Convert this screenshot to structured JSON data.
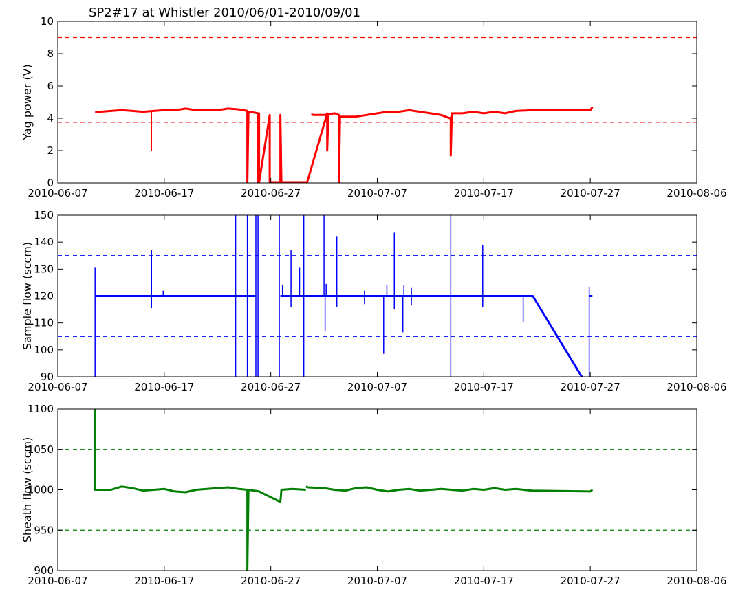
{
  "title": "SP2#17 at Whistler 2010/06/01-2010/09/01",
  "chart_data": [
    {
      "type": "line",
      "ylabel": "Yag power (V)",
      "color": "#ff0000",
      "ylim": [
        0,
        10
      ],
      "yticks": [
        0,
        2,
        4,
        6,
        8,
        10
      ],
      "xlim": [
        "2010-06-07",
        "2010-08-06"
      ],
      "xticks": [
        "2010-06-07",
        "2010-06-17",
        "2010-06-27",
        "2010-07-07",
        "2010-07-17",
        "2010-07-27",
        "2010-08-06"
      ],
      "thresholds": [
        9.0,
        3.75
      ],
      "grid": false,
      "series": [
        {
          "segments": [
            [
              [
                "2010-06-10.5",
                4.4
              ],
              [
                "2010-06-11",
                4.4
              ],
              [
                "2010-06-12",
                4.45
              ],
              [
                "2010-06-13",
                4.5
              ],
              [
                "2010-06-14",
                4.45
              ],
              [
                "2010-06-15",
                4.4
              ],
              [
                "2010-06-16",
                4.45
              ],
              [
                "2010-06-17",
                4.5
              ],
              [
                "2010-06-18",
                4.5
              ],
              [
                "2010-06-19",
                4.6
              ],
              [
                "2010-06-20",
                4.5
              ],
              [
                "2010-06-21",
                4.5
              ],
              [
                "2010-06-22",
                4.5
              ],
              [
                "2010-06-23",
                4.6
              ],
              [
                "2010-06-24",
                4.55
              ],
              [
                "2010-06-24.8",
                4.45
              ],
              [
                "2010-06-24.8",
                0.0
              ],
              [
                "2010-06-24.9",
                4.4
              ],
              [
                "2010-06-25",
                4.4
              ],
              [
                "2010-06-25.8",
                4.3
              ],
              [
                "2010-06-25.8",
                0.0
              ],
              [
                "2010-06-25.9",
                4.3
              ],
              [
                "2010-06-25.9",
                0.0
              ],
              [
                "2010-06-26.9",
                4.2
              ],
              [
                "2010-06-26.9",
                0.0
              ],
              [
                "2010-06-27.9",
                0.0
              ],
              [
                "2010-06-27.9",
                4.2
              ],
              [
                "2010-06-28",
                0.0
              ],
              [
                "2010-06-30.4",
                0.0
              ],
              [
                "2010-07-02.3",
                4.3
              ],
              [
                "2010-07-02.3",
                2.0
              ],
              [
                "2010-07-02.4",
                4.2
              ]
            ],
            [
              [
                "2010-06-30.8",
                4.25
              ],
              [
                "2010-07-01",
                4.2
              ],
              [
                "2010-07-02",
                4.2
              ],
              [
                "2010-07-03",
                4.3
              ],
              [
                "2010-07-03.4",
                4.2
              ],
              [
                "2010-07-03.4",
                0.0
              ],
              [
                "2010-07-03.5",
                4.1
              ],
              [
                "2010-07-04",
                4.1
              ],
              [
                "2010-07-05",
                4.1
              ],
              [
                "2010-07-06",
                4.2
              ],
              [
                "2010-07-07",
                4.3
              ],
              [
                "2010-07-08",
                4.4
              ],
              [
                "2010-07-09",
                4.4
              ],
              [
                "2010-07-10",
                4.5
              ],
              [
                "2010-07-11",
                4.4
              ],
              [
                "2010-07-12",
                4.3
              ],
              [
                "2010-07-13",
                4.2
              ],
              [
                "2010-07-13.8",
                4.0
              ],
              [
                "2010-07-13.9",
                4.05
              ],
              [
                "2010-07-13.9",
                1.7
              ],
              [
                "2010-07-14",
                4.3
              ],
              [
                "2010-07-15",
                4.3
              ],
              [
                "2010-07-16",
                4.4
              ],
              [
                "2010-07-17",
                4.3
              ],
              [
                "2010-07-18",
                4.4
              ],
              [
                "2010-07-19",
                4.3
              ],
              [
                "2010-07-20",
                4.45
              ],
              [
                "2010-07-21.5",
                4.5
              ],
              [
                "2010-07-27",
                4.5
              ],
              [
                "2010-07-27.2",
                4.7
              ]
            ]
          ],
          "spikes": [
            [
              "2010-06-15.8",
              4.4,
              2.0
            ]
          ]
        }
      ]
    },
    {
      "type": "line",
      "ylabel": "Sample flow (sccm)",
      "color": "#0000ff",
      "ylim": [
        90,
        150
      ],
      "yticks": [
        90,
        100,
        110,
        120,
        130,
        140,
        150
      ],
      "xlim": [
        "2010-06-07",
        "2010-08-06"
      ],
      "xticks": [
        "2010-06-07",
        "2010-06-17",
        "2010-06-27",
        "2010-07-07",
        "2010-07-17",
        "2010-07-27",
        "2010-08-06"
      ],
      "thresholds": [
        135,
        105
      ],
      "grid": false,
      "series": [
        {
          "segments": [
            [
              [
                "2010-06-10.5",
                120
              ],
              [
                "2010-06-25.6",
                120
              ]
            ],
            [
              [
                "2010-06-27.9",
                120
              ],
              [
                "2010-06-30.1",
                120
              ]
            ],
            [
              [
                "2010-06-30.1",
                120
              ],
              [
                "2010-07-21.6",
                120
              ],
              [
                "2010-07-26.2",
                90
              ]
            ],
            [
              [
                "2010-07-26.9",
                120
              ],
              [
                "2010-07-27.2",
                120
              ]
            ]
          ],
          "spikes": [
            [
              "2010-06-10.5",
              120,
              130.5
            ],
            [
              "2010-06-10.5",
              120,
              90
            ],
            [
              "2010-06-15.8",
              120,
              137
            ],
            [
              "2010-06-15.8",
              120,
              115.5
            ],
            [
              "2010-06-16.9",
              120,
              122
            ],
            [
              "2010-06-23.7",
              120,
              150
            ],
            [
              "2010-06-23.7",
              120,
              90
            ],
            [
              "2010-06-24.8",
              120,
              150
            ],
            [
              "2010-06-24.8",
              120,
              90
            ],
            [
              "2010-06-25.6",
              120,
              150
            ],
            [
              "2010-06-25.6",
              120,
              90
            ],
            [
              "2010-06-25.8",
              120,
              150
            ],
            [
              "2010-06-25.8",
              120,
              90
            ],
            [
              "2010-06-27.8",
              120,
              150
            ],
            [
              "2010-06-27.8",
              120,
              90
            ],
            [
              "2010-06-28.1",
              120,
              124
            ],
            [
              "2010-06-28.9",
              120,
              137
            ],
            [
              "2010-06-28.9",
              120,
              116
            ],
            [
              "2010-06-29.7",
              120,
              130.5
            ],
            [
              "2010-06-30.1",
              120,
              150
            ],
            [
              "2010-06-30.1",
              120,
              90
            ],
            [
              "2010-07-02.0",
              120,
              150
            ],
            [
              "2010-07-02.1",
              120,
              107
            ],
            [
              "2010-07-02.2",
              120,
              124.5
            ],
            [
              "2010-07-03.2",
              120,
              142
            ],
            [
              "2010-07-03.2",
              120,
              116
            ],
            [
              "2010-07-05.8",
              120,
              122
            ],
            [
              "2010-07-05.8",
              120,
              117
            ],
            [
              "2010-07-07.6",
              120,
              98.5
            ],
            [
              "2010-07-07.9",
              120,
              124
            ],
            [
              "2010-07-08.6",
              120,
              143.5
            ],
            [
              "2010-07-08.6",
              120,
              115
            ],
            [
              "2010-07-09.4",
              120,
              106.5
            ],
            [
              "2010-07-09.5",
              120,
              124
            ],
            [
              "2010-07-10.2",
              120,
              123
            ],
            [
              "2010-07-10.2",
              120,
              116.5
            ],
            [
              "2010-07-13.9",
              120,
              150
            ],
            [
              "2010-07-13.9",
              120,
              90
            ],
            [
              "2010-07-16.9",
              120,
              139
            ],
            [
              "2010-07-16.9",
              120,
              116
            ],
            [
              "2010-07-20.7",
              120,
              110.5
            ],
            [
              "2010-07-26.9",
              120,
              123.5
            ],
            [
              "2010-07-26.9",
              120,
              90
            ]
          ]
        }
      ]
    },
    {
      "type": "line",
      "ylabel": "Sheath flow (sccm)",
      "color": "#008000",
      "ylim": [
        900,
        1100
      ],
      "yticks": [
        900,
        950,
        1000,
        1050,
        1100
      ],
      "xlim": [
        "2010-06-07",
        "2010-08-06"
      ],
      "xticks": [
        "2010-06-07",
        "2010-06-17",
        "2010-06-27",
        "2010-07-07",
        "2010-07-17",
        "2010-07-27",
        "2010-08-06"
      ],
      "thresholds": [
        1050,
        950
      ],
      "grid": false,
      "series": [
        {
          "segments": [
            [
              [
                "2010-06-10.5",
                1100
              ],
              [
                "2010-06-10.5",
                1000
              ],
              [
                "2010-06-12",
                1000
              ],
              [
                "2010-06-13",
                1004
              ],
              [
                "2010-06-14",
                1002
              ],
              [
                "2010-06-15",
                999
              ],
              [
                "2010-06-16",
                1000
              ],
              [
                "2010-06-17",
                1001
              ],
              [
                "2010-06-18",
                998
              ],
              [
                "2010-06-19",
                997
              ],
              [
                "2010-06-20",
                1000
              ],
              [
                "2010-06-21",
                1001
              ],
              [
                "2010-06-22",
                1002
              ],
              [
                "2010-06-23",
                1003
              ],
              [
                "2010-06-24",
                1001
              ],
              [
                "2010-06-24.8",
                1000
              ],
              [
                "2010-06-24.8",
                900
              ],
              [
                "2010-06-24.9",
                1000
              ],
              [
                "2010-06-25.9",
                998
              ],
              [
                "2010-06-27.9",
                985
              ],
              [
                "2010-06-28",
                1000
              ],
              [
                "2010-06-29",
                1001
              ],
              [
                "2010-06-30.3",
                1000
              ]
            ],
            [
              [
                "2010-06-30.3",
                1004
              ],
              [
                "2010-07-00.5",
                1003
              ],
              [
                "2010-07-02",
                1002
              ],
              [
                "2010-07-03",
                1000
              ],
              [
                "2010-07-04",
                999
              ],
              [
                "2010-07-05",
                1002
              ],
              [
                "2010-07-06",
                1003
              ],
              [
                "2010-07-07",
                1000
              ],
              [
                "2010-07-08",
                998
              ],
              [
                "2010-07-09",
                1000
              ],
              [
                "2010-07-10",
                1001
              ],
              [
                "2010-07-11",
                999
              ],
              [
                "2010-07-12",
                1000
              ],
              [
                "2010-07-13",
                1001
              ],
              [
                "2010-07-14",
                1000
              ],
              [
                "2010-07-15",
                999
              ],
              [
                "2010-07-16",
                1001
              ],
              [
                "2010-07-17",
                1000
              ],
              [
                "2010-07-18",
                1002
              ],
              [
                "2010-07-19",
                1000
              ],
              [
                "2010-07-20",
                1001
              ],
              [
                "2010-07-21.5",
                999
              ],
              [
                "2010-07-27",
                998
              ],
              [
                "2010-07-27.2",
                1000
              ]
            ]
          ],
          "spikes": []
        }
      ]
    }
  ]
}
